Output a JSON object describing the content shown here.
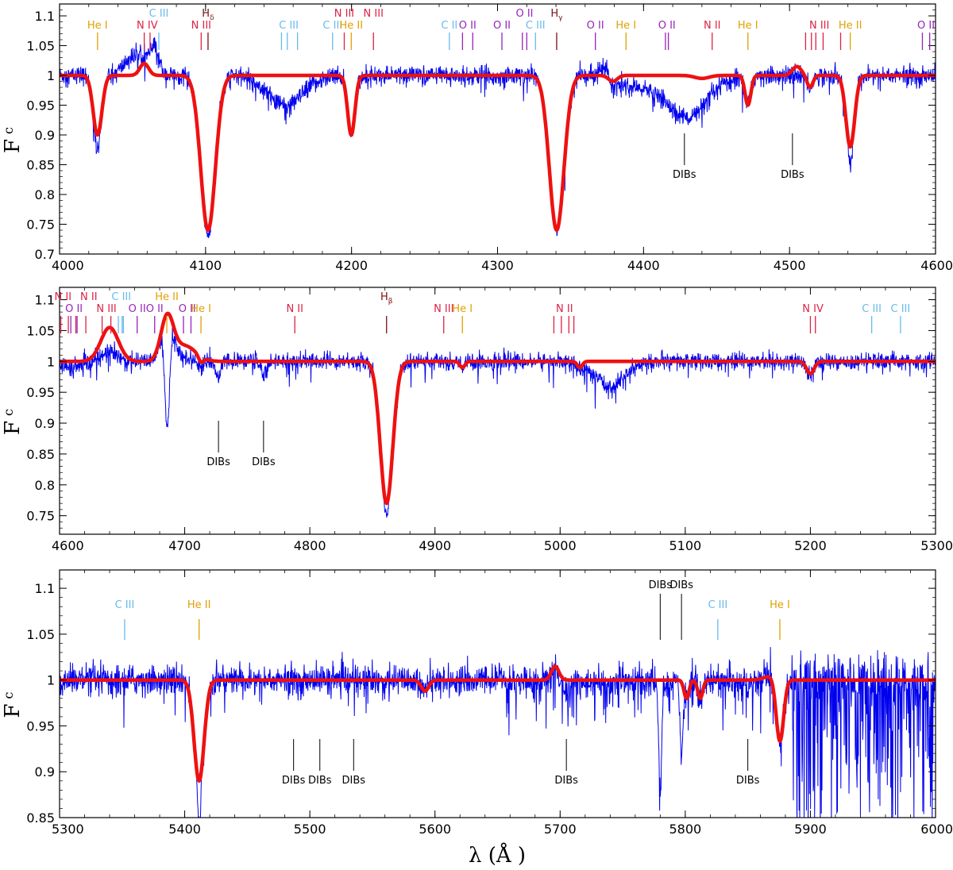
{
  "xlabel": "λ (Å )",
  "ylabel": "F",
  "ylabel_sub": "c",
  "colors": {
    "observed": "#0000ee",
    "model": "#ee1111",
    "He I": "#e0a000",
    "He II": "#e0a000",
    "N": "#dd2244",
    "C": "#66bbee",
    "O": "#9922bb",
    "H": "#7a1010",
    "DIB": "#000000"
  },
  "chart_data": [
    {
      "type": "line",
      "series": [
        {
          "name": "",
          "kind": "observed"
        },
        {
          "name": "",
          "kind": "model"
        }
      ],
      "xlim": [
        4000,
        4600
      ],
      "ylim": [
        0.7,
        1.12
      ],
      "xticks": [
        4000,
        4100,
        4200,
        4300,
        4400,
        4500,
        4600
      ],
      "yticks": [
        0.7,
        0.75,
        0.8,
        0.85,
        0.9,
        0.95,
        1,
        1.05,
        1.1
      ],
      "ytick_labels": [
        "0.7",
        "0.75",
        "0.8",
        "0.85",
        "0.9",
        "0.95",
        "1",
        "1.05",
        "1.1"
      ],
      "absorption_lines": [
        {
          "wl": 4026,
          "depth": 0.1,
          "width": 3
        },
        {
          "wl": 4101.7,
          "depth": 0.26,
          "width": 5
        },
        {
          "wl": 4199.8,
          "depth": 0.1,
          "width": 2.5
        },
        {
          "wl": 4340.5,
          "depth": 0.26,
          "width": 5
        },
        {
          "wl": 4471.5,
          "depth": 0.05,
          "width": 2
        },
        {
          "wl": 4541.6,
          "depth": 0.12,
          "width": 3
        },
        {
          "wl": 4514,
          "depth": 0.02,
          "width": 2
        },
        {
          "wl": 4058,
          "depth": -0.02,
          "width": 3
        },
        {
          "wl": 4379,
          "depth": 0.01,
          "width": 3
        }
      ],
      "observed_extra": [
        {
          "wl": 4050,
          "depth": -0.03,
          "width": 6
        },
        {
          "wl": 4065,
          "depth": -0.045,
          "width": 3
        },
        {
          "wl": 4155,
          "depth": 0.05,
          "width": 12
        },
        {
          "wl": 4372,
          "depth": -0.02,
          "width": 3
        },
        {
          "wl": 4430,
          "depth": 0.07,
          "width": 14
        },
        {
          "wl": 4395,
          "depth": 0.02,
          "width": 12
        },
        {
          "wl": 4101.7,
          "depth": 0.01,
          "width": 2
        },
        {
          "wl": 4541.6,
          "depth": 0.03,
          "width": 1.5
        },
        {
          "wl": 4026,
          "depth": 0.03,
          "width": 1.5
        }
      ],
      "model_extra": [
        {
          "wl": 4505,
          "depth": -0.015,
          "width": 3
        },
        {
          "wl": 4440,
          "depth": 0.005,
          "width": 5
        }
      ],
      "noise": 0.008,
      "ident_lines": [
        {
          "label": "He I",
          "group": "He I",
          "wl": [
            4026
          ],
          "level": 2
        },
        {
          "label": "N IV",
          "group": "N",
          "wl": [
            4058,
            4062
          ],
          "level": 2
        },
        {
          "label": "C III",
          "group": "C",
          "wl": [
            4068
          ],
          "level": 1
        },
        {
          "label": "N III",
          "group": "N",
          "wl": [
            4097
          ],
          "level": 2
        },
        {
          "label": "H",
          "sub": "δ",
          "group": "H",
          "wl": [
            4101.7
          ],
          "level": 1
        },
        {
          "label": "C III",
          "group": "C",
          "wl": [
            4152,
            4156,
            4163
          ],
          "level": 2
        },
        {
          "label": "C III",
          "group": "C",
          "wl": [
            4187
          ],
          "level": 2
        },
        {
          "label": "N III",
          "group": "N",
          "wl": [
            4195
          ],
          "level": 1
        },
        {
          "label": "He II",
          "group": "He II",
          "wl": [
            4199.8
          ],
          "level": 2
        },
        {
          "label": "N III",
          "group": "N",
          "wl": [
            4215
          ],
          "level": 1
        },
        {
          "label": "C II",
          "group": "C",
          "wl": [
            4267
          ],
          "level": 2
        },
        {
          "label": "O II",
          "group": "O",
          "wl": [
            4276,
            4283
          ],
          "level": 2
        },
        {
          "label": "O II",
          "group": "O",
          "wl": [
            4303
          ],
          "level": 2
        },
        {
          "label": "O II",
          "group": "O",
          "wl": [
            4317,
            4320
          ],
          "level": 1
        },
        {
          "label": "C III",
          "group": "C",
          "wl": [
            4326
          ],
          "level": 2
        },
        {
          "label": "H",
          "sub": "γ",
          "group": "H",
          "wl": [
            4340.5
          ],
          "level": 1
        },
        {
          "label": "O II",
          "group": "O",
          "wl": [
            4367
          ],
          "level": 2
        },
        {
          "label": "He I",
          "group": "He I",
          "wl": [
            4388
          ],
          "level": 2
        },
        {
          "label": "O II",
          "group": "O",
          "wl": [
            4415,
            4417
          ],
          "level": 2
        },
        {
          "label": "N II",
          "group": "N",
          "wl": [
            4447
          ],
          "level": 2
        },
        {
          "label": "He I",
          "group": "He I",
          "wl": [
            4471.5
          ],
          "level": 2
        },
        {
          "label": "N III",
          "group": "N",
          "wl": [
            4511,
            4515,
            4518,
            4523,
            4535
          ],
          "level": 2
        },
        {
          "label": "He II",
          "group": "He II",
          "wl": [
            4541.6
          ],
          "level": 2
        },
        {
          "label": "O II",
          "group": "O",
          "wl": [
            4591,
            4596
          ],
          "level": 2
        }
      ],
      "dibs": [
        {
          "wl": 4428,
          "label": "DIBs"
        },
        {
          "wl": 4502,
          "label": "DIBs"
        }
      ]
    },
    {
      "type": "line",
      "series": [
        {
          "name": "",
          "kind": "observed"
        },
        {
          "name": "",
          "kind": "model"
        }
      ],
      "xlim": [
        4600,
        5300
      ],
      "ylim": [
        0.72,
        1.12
      ],
      "xticks": [
        4600,
        4700,
        4800,
        4900,
        5000,
        5100,
        5200,
        5300
      ],
      "yticks": [
        0.75,
        0.8,
        0.85,
        0.9,
        0.95,
        1,
        1.05,
        1.1
      ],
      "ytick_labels": [
        "0.75",
        "0.8",
        "0.85",
        "0.9",
        "0.95",
        "1",
        "1.05",
        "1.1"
      ],
      "absorption_lines": [
        {
          "wl": 4861.3,
          "depth": 0.23,
          "width": 5
        },
        {
          "wl": 4921.9,
          "depth": 0.01,
          "width": 2
        },
        {
          "wl": 5015.7,
          "depth": 0.01,
          "width": 2
        },
        {
          "wl": 4713,
          "depth": 0.01,
          "width": 2
        },
        {
          "wl": 5200,
          "depth": 0.02,
          "width": 3
        },
        {
          "wl": 4640,
          "depth": -0.055,
          "width": 7
        },
        {
          "wl": 4686,
          "depth": -0.07,
          "width": 5
        },
        {
          "wl": 4700,
          "depth": -0.025,
          "width": 9
        }
      ],
      "observed_extra": [
        {
          "wl": 4640,
          "depth": 0.04,
          "width": 7
        },
        {
          "wl": 4686,
          "depth": 0.18,
          "width": 2
        },
        {
          "wl": 4700,
          "depth": 0.02,
          "width": 9
        },
        {
          "wl": 4727,
          "depth": 0.025,
          "width": 2
        },
        {
          "wl": 4763,
          "depth": 0.02,
          "width": 2
        },
        {
          "wl": 5040,
          "depth": 0.04,
          "width": 12
        },
        {
          "wl": 4861.3,
          "depth": 0.02,
          "width": 1.5
        },
        {
          "wl": 4610,
          "depth": 0.01,
          "width": 10
        }
      ],
      "model_extra": [],
      "noise": 0.007,
      "ident_lines": [
        {
          "label": "N II",
          "group": "N",
          "wl": [
            4601,
            4607
          ],
          "level": 1,
          "dx": -2
        },
        {
          "label": "N II",
          "group": "N",
          "wl": [
            4613,
            4621
          ],
          "level": 1,
          "dx": 10
        },
        {
          "label": "O II",
          "group": "O",
          "wl": [
            4609,
            4614
          ],
          "level": 2
        },
        {
          "label": "N III",
          "group": "N",
          "wl": [
            4634,
            4641
          ],
          "level": 2
        },
        {
          "label": "O II",
          "group": "O",
          "wl": [
            4662
          ],
          "level": 2
        },
        {
          "label": "C III",
          "group": "C",
          "wl": [
            4647,
            4650,
            4651
          ],
          "level": 1
        },
        {
          "label": "O II",
          "group": "O",
          "wl": [
            4676
          ],
          "level": 2
        },
        {
          "label": "He II",
          "group": "He II",
          "wl": [
            4685.7
          ],
          "level": 1
        },
        {
          "label": "O II",
          "group": "O",
          "wl": [
            4699,
            4705
          ],
          "level": 2
        },
        {
          "label": "He I",
          "group": "He I",
          "wl": [
            4713
          ],
          "level": 2
        },
        {
          "label": "N II",
          "group": "N",
          "wl": [
            4788
          ],
          "level": 2
        },
        {
          "label": "H",
          "sub": "β",
          "group": "H",
          "wl": [
            4861.3
          ],
          "level": 1
        },
        {
          "label": "N III",
          "group": "N",
          "wl": [
            4907
          ],
          "level": 2
        },
        {
          "label": "He I",
          "group": "He I",
          "wl": [
            4921.9
          ],
          "level": 2
        },
        {
          "label": "N II",
          "group": "N",
          "wl": [
            4995,
            5001,
            5007,
            5011
          ],
          "level": 2
        },
        {
          "label": "N IV",
          "group": "N",
          "wl": [
            5200,
            5204
          ],
          "level": 2
        },
        {
          "label": "C III",
          "group": "C",
          "wl": [
            5249
          ],
          "level": 2
        },
        {
          "label": "C III",
          "group": "C",
          "wl": [
            5272
          ],
          "level": 2
        }
      ],
      "dibs": [
        {
          "wl": 4727,
          "label": "DIBs"
        },
        {
          "wl": 4763,
          "label": "DIBs"
        }
      ]
    },
    {
      "type": "line",
      "series": [
        {
          "name": "",
          "kind": "observed"
        },
        {
          "name": "",
          "kind": "model"
        }
      ],
      "xlim": [
        5300,
        6000
      ],
      "ylim": [
        0.85,
        1.12
      ],
      "xticks": [
        5300,
        5400,
        5500,
        5600,
        5700,
        5800,
        5900,
        6000
      ],
      "yticks": [
        0.85,
        0.9,
        0.95,
        1,
        1.05,
        1.1
      ],
      "ytick_labels": [
        "0.85",
        "0.9",
        "0.95",
        "1",
        "1.05",
        "1.1"
      ],
      "absorption_lines": [
        {
          "wl": 5411.5,
          "depth": 0.11,
          "width": 4
        },
        {
          "wl": 5592,
          "depth": 0.012,
          "width": 3
        },
        {
          "wl": 5801,
          "depth": 0.02,
          "width": 2
        },
        {
          "wl": 5812,
          "depth": 0.02,
          "width": 2
        },
        {
          "wl": 5875.6,
          "depth": 0.07,
          "width": 3
        },
        {
          "wl": 5696,
          "depth": -0.015,
          "width": 3
        },
        {
          "wl": 5870,
          "depth": -0.005,
          "width": 6
        }
      ],
      "observed_extra": [
        {
          "wl": 5411.5,
          "depth": 0.04,
          "width": 1.5
        },
        {
          "wl": 5780,
          "depth": 0.12,
          "width": 1.2
        },
        {
          "wl": 5797,
          "depth": 0.08,
          "width": 1.2
        },
        {
          "wl": 5850,
          "depth": 0.02,
          "width": 1
        },
        {
          "wl": 5705,
          "depth": 0.01,
          "width": 4
        }
      ],
      "model_extra": [],
      "noise": 0.008,
      "telluric_start": 5885,
      "ident_lines": [
        {
          "label": "C III",
          "group": "C",
          "wl": [
            5352
          ],
          "level": 1
        },
        {
          "label": "He II",
          "group": "He II",
          "wl": [
            5411.5
          ],
          "level": 1
        },
        {
          "label": "C III",
          "group": "C",
          "wl": [
            5826
          ],
          "level": 1
        },
        {
          "label": "He I",
          "group": "He I",
          "wl": [
            5875.6
          ],
          "level": 1
        }
      ],
      "dibs": [
        {
          "wl": 5487,
          "label": "DIBs"
        },
        {
          "wl": 5508,
          "label": "DIBs"
        },
        {
          "wl": 5535,
          "label": "DIBs"
        },
        {
          "wl": 5705,
          "label": "DIBs"
        },
        {
          "wl": 5780,
          "label": "DIBs",
          "top": true
        },
        {
          "wl": 5797,
          "label": "DIBs",
          "top": true
        },
        {
          "wl": 5850,
          "label": "DIBs"
        }
      ]
    }
  ]
}
